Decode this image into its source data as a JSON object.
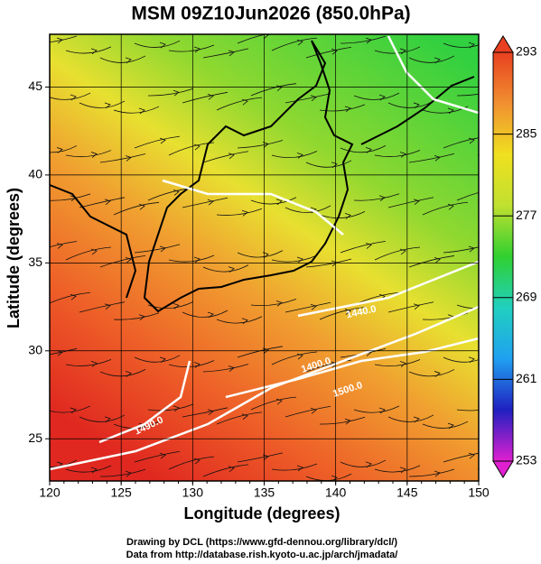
{
  "chart_data": {
    "type": "map",
    "title": "MSM 09Z10Jun2026 (850.0hPa)",
    "x_label": "Longitude (degrees)",
    "y_label": "Latitude  (degrees)",
    "xlim": [
      120,
      150
    ],
    "ylim": [
      22.6,
      48
    ],
    "xticks": [
      120,
      125,
      130,
      135,
      140,
      145,
      150
    ],
    "yticks": [
      25,
      30,
      35,
      40,
      45
    ],
    "grid": true,
    "colorbar": {
      "range": [
        253,
        293
      ],
      "ticks": [
        253,
        261,
        269,
        277,
        285,
        293
      ],
      "colors": [
        "#e020d0",
        "#2020c0",
        "#20a0f0",
        "#20d0c0",
        "#30d030",
        "#c0e030",
        "#f0e020",
        "#f09030",
        "#e84020"
      ]
    },
    "contour_labels": [
      "1400.0",
      "1500.0",
      "1440.0",
      "1490.0"
    ],
    "footer": [
      "Drawing by DCL (https://www.gfd-dennou.org/library/dcl/)",
      "Data from http://database.rish.kyoto-u.ac.jp/arch/jmadata/"
    ]
  }
}
